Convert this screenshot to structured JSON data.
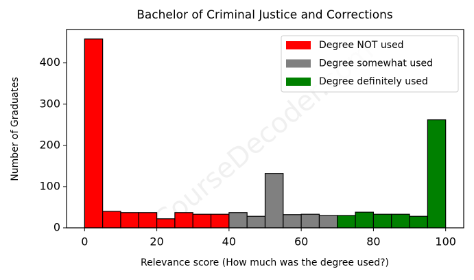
{
  "chart_data": {
    "type": "histogram",
    "title": "Bachelor of Criminal Justice and Corrections",
    "x_label": "Relevance score (How much was the degree used?)",
    "y_label": "Number of Graduates",
    "watermark": "CourseDecoder.com",
    "xlim": [
      -5,
      105
    ],
    "xticks": [
      0,
      20,
      40,
      60,
      80,
      100
    ],
    "ylim": [
      0,
      481
    ],
    "yticks": [
      0,
      100,
      200,
      300,
      400
    ],
    "legend": "upper right",
    "series": [
      {
        "name": "Degree NOT used",
        "color": "#ff0000",
        "bins": [
          0,
          5,
          10,
          15,
          20,
          25,
          30,
          35,
          40
        ],
        "values": [
          458,
          40,
          37,
          37,
          22,
          37,
          33,
          33
        ]
      },
      {
        "name": "Degree somewhat used",
        "color": "#808080",
        "bins": [
          40,
          45,
          50,
          55,
          60,
          65,
          70
        ],
        "values": [
          37,
          28,
          132,
          32,
          33,
          30
        ]
      },
      {
        "name": "Degree definitely used",
        "color": "#008000",
        "bins": [
          70,
          75,
          80,
          85,
          90,
          95,
          100
        ],
        "values": [
          30,
          38,
          33,
          33,
          28,
          262
        ]
      }
    ]
  }
}
